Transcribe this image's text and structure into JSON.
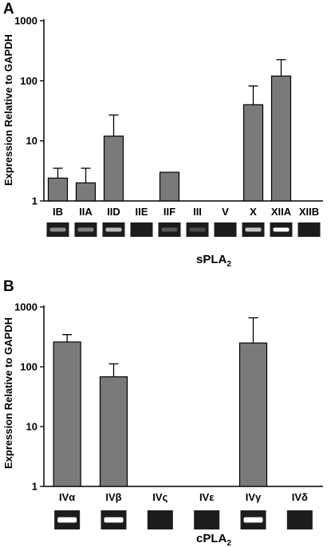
{
  "chart_data": [
    {
      "panel": "A",
      "type": "bar",
      "yscale": "log",
      "ylim": [
        1,
        1000
      ],
      "yticks": [
        1,
        10,
        100,
        1000
      ],
      "ylabel": "Expression Relative to GAPDH",
      "xlabel": "sPLA",
      "xlabel_sub": "2",
      "categories": [
        "IB",
        "IIA",
        "IID",
        "IIE",
        "IIF",
        "III",
        "V",
        "X",
        "XIIA",
        "XIIB"
      ],
      "values": [
        2.4,
        2.0,
        12.0,
        null,
        3.0,
        null,
        null,
        40.0,
        120.0,
        null
      ],
      "error_upper": [
        3.5,
        3.5,
        27.0,
        null,
        null,
        null,
        null,
        82.0,
        225.0,
        null
      ],
      "gel_band": [
        0.4,
        0.35,
        0.65,
        0,
        0.15,
        0.08,
        0,
        0.7,
        1.0,
        0
      ]
    },
    {
      "panel": "B",
      "type": "bar",
      "yscale": "log",
      "ylim": [
        1,
        1000
      ],
      "yticks": [
        1,
        10,
        100,
        1000
      ],
      "ylabel": "Expression Relative to GAPDH",
      "xlabel": "cPLA",
      "xlabel_sub": "2",
      "categories": [
        "IVα",
        "IVβ",
        "IVς",
        "IVε",
        "IVγ",
        "IVδ"
      ],
      "values": [
        260.0,
        68.0,
        null,
        null,
        250.0,
        null
      ],
      "error_upper": [
        345.0,
        112.0,
        null,
        null,
        660.0,
        null
      ],
      "gel_band": [
        1.0,
        1.0,
        0,
        0,
        1.0,
        0
      ]
    }
  ]
}
